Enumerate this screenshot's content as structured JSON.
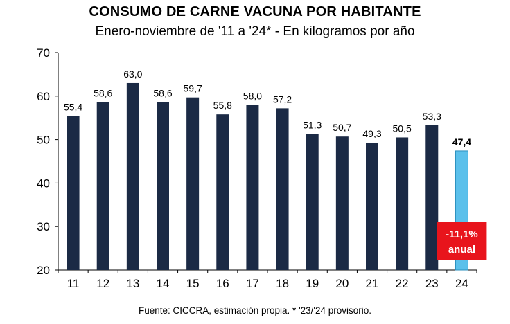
{
  "chart_data": {
    "type": "bar",
    "title": "CONSUMO DE CARNE VACUNA POR HABITANTE",
    "subtitle": "Enero-noviembre de '11 a '24* - En kilogramos por año",
    "source": "Fuente: CICCRA, estimación propia. * '23/'24 provisorio.",
    "categories": [
      "11",
      "12",
      "13",
      "14",
      "15",
      "16",
      "17",
      "18",
      "19",
      "20",
      "21",
      "22",
      "23",
      "24"
    ],
    "values": [
      55.4,
      58.6,
      63.0,
      58.6,
      59.7,
      55.8,
      58.0,
      57.2,
      51.3,
      50.7,
      49.3,
      50.5,
      53.3,
      47.4
    ],
    "value_labels": [
      "55,4",
      "58,6",
      "63,0",
      "58,6",
      "59,7",
      "55,8",
      "58,0",
      "57,2",
      "51,3",
      "50,7",
      "49,3",
      "50,5",
      "53,3",
      "47,4"
    ],
    "ylim": [
      20,
      70
    ],
    "yticks": [
      20,
      30,
      40,
      50,
      60,
      70
    ],
    "grid": false,
    "colors": {
      "bar": "#1b2a45",
      "highlight": "#5bc0eb",
      "callout": "#e8141c"
    },
    "highlight_index": 13,
    "annotation": {
      "line1": "-11,1%",
      "line2": "anual"
    }
  }
}
